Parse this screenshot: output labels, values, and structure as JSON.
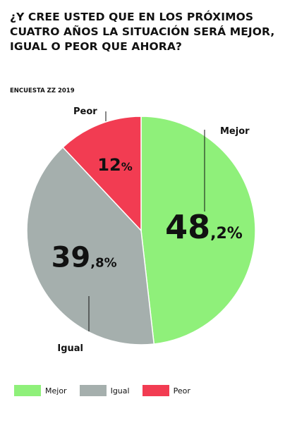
{
  "header": {
    "title": "¿Y CREE USTED QUE EN LOS PRÓXIMOS CUATRO AÑOS LA SITUACIÓN SERÁ MEJOR, IGUAL O PEOR QUE AHORA?",
    "source": "ENCUESTA ZZ 2019"
  },
  "chart_data": {
    "type": "pie",
    "categories": [
      "Mejor",
      "Igual",
      "Peor"
    ],
    "values": [
      48.2,
      39.8,
      12
    ],
    "value_labels": [
      {
        "main": "48",
        "decimal": ",2%"
      },
      {
        "main": "39",
        "decimal": ",8%"
      },
      {
        "main": "12",
        "decimal": "%"
      }
    ],
    "colors": [
      "#8ff07a",
      "#a5afad",
      "#f23c52"
    ],
    "legend_position": "bottom"
  }
}
